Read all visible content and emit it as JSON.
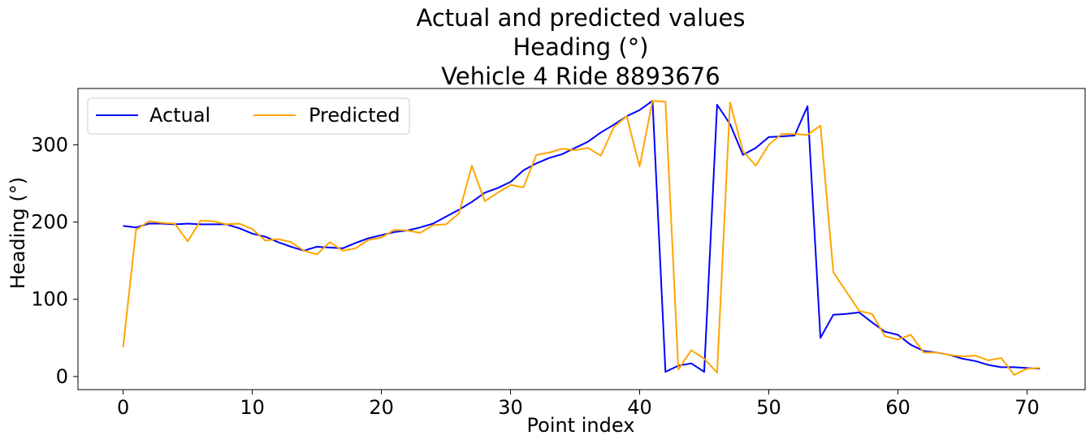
{
  "chart_data": {
    "type": "line",
    "title": [
      "Actual and predicted values",
      "Heading (°)",
      "Vehicle 4 Ride 8893676"
    ],
    "xlabel": "Point index",
    "ylabel": "Heading (°)",
    "xlim": [
      -3.5,
      74.5
    ],
    "ylim": [
      -17,
      373
    ],
    "xticks": [
      0,
      10,
      20,
      30,
      40,
      50,
      60,
      70
    ],
    "yticks": [
      0,
      100,
      200,
      300
    ],
    "grid": false,
    "legend": {
      "placement": "top-left",
      "columns": 2
    },
    "x": [
      0,
      1,
      2,
      3,
      4,
      5,
      6,
      7,
      8,
      9,
      10,
      11,
      12,
      13,
      14,
      15,
      16,
      17,
      18,
      19,
      20,
      21,
      22,
      23,
      24,
      25,
      26,
      27,
      28,
      29,
      30,
      31,
      32,
      33,
      34,
      35,
      36,
      37,
      38,
      39,
      40,
      41,
      42,
      43,
      44,
      45,
      46,
      47,
      48,
      49,
      50,
      51,
      52,
      53,
      54,
      55,
      56,
      57,
      58,
      59,
      60,
      61,
      62,
      63,
      64,
      65,
      66,
      67,
      68,
      69,
      70,
      71
    ],
    "series": [
      {
        "name": "Actual",
        "color": "#0000ff",
        "values": [
          195,
          193,
          198,
          198,
          197,
          198,
          197,
          197,
          197,
          192,
          185,
          181,
          174,
          168,
          163,
          168,
          167,
          166,
          173,
          179,
          183,
          187,
          189,
          193,
          198,
          207,
          216,
          226,
          238,
          244,
          252,
          267,
          276,
          283,
          288,
          296,
          304,
          316,
          326,
          337,
          345,
          357,
          6,
          14,
          17,
          6,
          352,
          327,
          287,
          296,
          310,
          311,
          312,
          350,
          50,
          80,
          81,
          83,
          70,
          58,
          54,
          41,
          33,
          31,
          28,
          23,
          20,
          15,
          12,
          12,
          11,
          10
        ]
      },
      {
        "name": "Predicted",
        "color": "#ffa500",
        "values": [
          38,
          190,
          201,
          199,
          198,
          175,
          202,
          201,
          197,
          198,
          191,
          176,
          178,
          174,
          163,
          158,
          174,
          163,
          166,
          177,
          180,
          190,
          189,
          186,
          196,
          197,
          211,
          273,
          227,
          238,
          248,
          245,
          287,
          290,
          295,
          293,
          296,
          286,
          323,
          337,
          272,
          357,
          356,
          9,
          34,
          23,
          5,
          355,
          292,
          273,
          300,
          314,
          314,
          313,
          325,
          135,
          110,
          85,
          81,
          52,
          48,
          54,
          31,
          31,
          28,
          26,
          27,
          21,
          24,
          2,
          10,
          11
        ]
      }
    ]
  }
}
